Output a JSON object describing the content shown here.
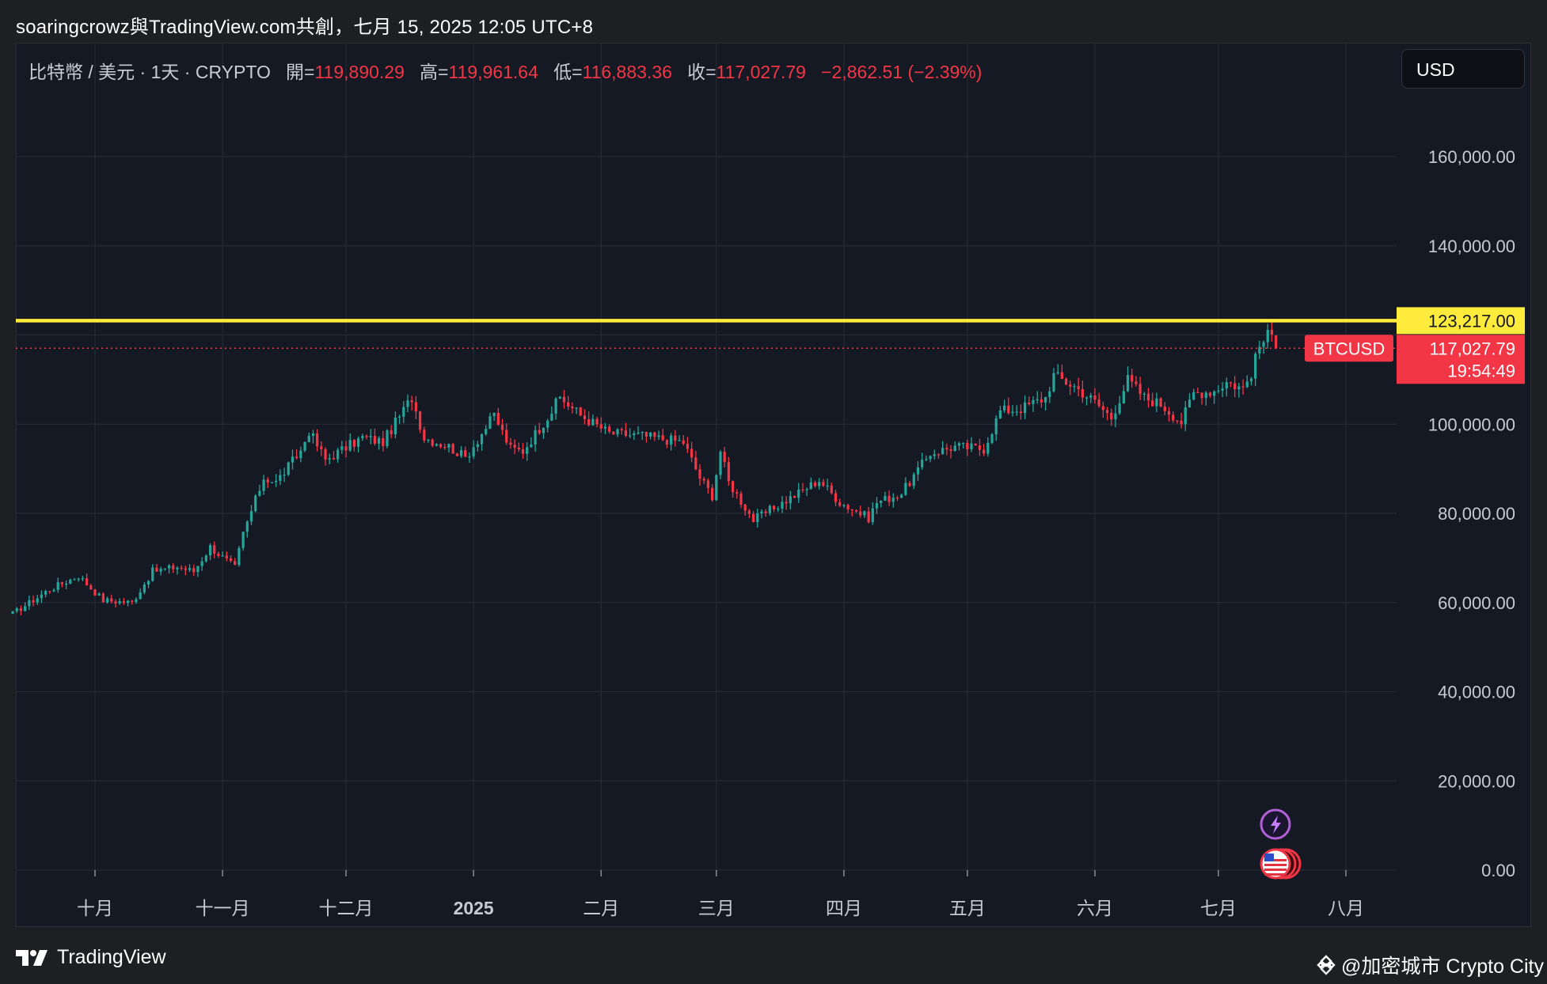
{
  "header": {
    "title": "soaringcrowz與TradingView.com共創，七月 15, 2025 12:05 UTC+8"
  },
  "legend": {
    "symbol": "比特幣 / 美元 · 1天 · CRYPTO",
    "open_label": "開=",
    "open": "119,890.29",
    "high_label": "高=",
    "high": "119,961.64",
    "low_label": "低=",
    "low": "116,883.36",
    "close_label": "收=",
    "close": "117,027.79",
    "change": "−2,862.51 (−2.39%)"
  },
  "currency_button": "USD",
  "price_labels": {
    "resistance": "123,217.00",
    "current": "117,027.79",
    "countdown": "19:54:49",
    "symbol_tag": "BTCUSD"
  },
  "footer": {
    "logo_text": "TradingView",
    "credit": "@加密城市 Crypto City"
  },
  "colors": {
    "up": "#26a69a",
    "down": "#f23645",
    "resistance_line": "#ffeb3b",
    "background": "#151924",
    "grid": "#262a35"
  },
  "icons": [
    "lightning-event-icon",
    "us-flag-event-icon",
    "tradingview-logo-icon",
    "binance-diamond-icon"
  ],
  "chart_data": {
    "type": "candlestick",
    "title": "比特幣 / 美元 · 1天 · CRYPTO",
    "ylim": [
      0,
      180000
    ],
    "yticks": [
      0,
      20000,
      40000,
      60000,
      80000,
      100000,
      120000,
      140000,
      160000
    ],
    "y_tick_labels": [
      "0.00",
      "20,000.00",
      "40,000.00",
      "60,000.00",
      "80,000.00",
      "100,000.00",
      "140,000.00",
      "160,000.00"
    ],
    "x_tick_labels": [
      "十月",
      "十一月",
      "十二月",
      "2025",
      "二月",
      "三月",
      "四月",
      "五月",
      "六月",
      "七月",
      "八月"
    ],
    "x_tick_dates": [
      "2024-10-01",
      "2024-11-01",
      "2024-12-01",
      "2025-01-01",
      "2025-02-01",
      "2025-03-01",
      "2025-04-01",
      "2025-05-01",
      "2025-06-01",
      "2025-07-01",
      "2025-08-01"
    ],
    "resistance_level": 123217.0,
    "last_price": 117027.79,
    "grid": true,
    "price_path_key_points": [
      [
        "2024-09-11",
        57500
      ],
      [
        "2024-09-20",
        63000
      ],
      [
        "2024-09-27",
        66000
      ],
      [
        "2024-10-03",
        60500
      ],
      [
        "2024-10-10",
        60000
      ],
      [
        "2024-10-15",
        67000
      ],
      [
        "2024-10-21",
        68000
      ],
      [
        "2024-10-25",
        67000
      ],
      [
        "2024-10-29",
        72500
      ],
      [
        "2024-11-04",
        67800
      ],
      [
        "2024-11-06",
        75500
      ],
      [
        "2024-11-11",
        88000
      ],
      [
        "2024-11-14",
        87000
      ],
      [
        "2024-11-20",
        94000
      ],
      [
        "2024-11-22",
        98500
      ],
      [
        "2024-11-26",
        92000
      ],
      [
        "2024-12-05",
        97000
      ],
      [
        "2024-12-10",
        96000
      ],
      [
        "2024-12-17",
        106000
      ],
      [
        "2024-12-20",
        97000
      ],
      [
        "2024-12-26",
        95000
      ],
      [
        "2024-12-30",
        92500
      ],
      [
        "2025-01-06",
        102000
      ],
      [
        "2025-01-10",
        94500
      ],
      [
        "2025-01-13",
        94000
      ],
      [
        "2025-01-20",
        103000
      ],
      [
        "2025-01-22",
        106000
      ],
      [
        "2025-01-27",
        102000
      ],
      [
        "2025-02-03",
        98000
      ],
      [
        "2025-02-10",
        97500
      ],
      [
        "2025-02-21",
        96000
      ],
      [
        "2025-02-25",
        88000
      ],
      [
        "2025-02-28",
        84000
      ],
      [
        "2025-03-02",
        94000
      ],
      [
        "2025-03-04",
        87000
      ],
      [
        "2025-03-10",
        78500
      ],
      [
        "2025-03-20",
        84000
      ],
      [
        "2025-03-26",
        87500
      ],
      [
        "2025-03-31",
        82500
      ],
      [
        "2025-04-07",
        79000
      ],
      [
        "2025-04-09",
        82500
      ],
      [
        "2025-04-15",
        84500
      ],
      [
        "2025-04-22",
        93500
      ],
      [
        "2025-04-28",
        95000
      ],
      [
        "2025-05-05",
        94500
      ],
      [
        "2025-05-09",
        103000
      ],
      [
        "2025-05-14",
        103500
      ],
      [
        "2025-05-20",
        106000
      ],
      [
        "2025-05-22",
        111000
      ],
      [
        "2025-05-27",
        108500
      ],
      [
        "2025-06-01",
        105000
      ],
      [
        "2025-06-05",
        101500
      ],
      [
        "2025-06-09",
        110000
      ],
      [
        "2025-06-13",
        106000
      ],
      [
        "2025-06-17",
        104500
      ],
      [
        "2025-06-22",
        100500
      ],
      [
        "2025-06-25",
        107000
      ],
      [
        "2025-06-30",
        107500
      ],
      [
        "2025-07-03",
        109500
      ],
      [
        "2025-07-07",
        108000
      ],
      [
        "2025-07-09",
        111500
      ],
      [
        "2025-07-11",
        117500
      ],
      [
        "2025-07-13",
        119800
      ],
      [
        "2025-07-14",
        119900
      ],
      [
        "2025-07-15",
        117028
      ]
    ],
    "last_candle": {
      "date": "2025-07-15",
      "open": 119890.29,
      "high": 119961.64,
      "low": 116883.36,
      "close": 117027.79
    }
  }
}
